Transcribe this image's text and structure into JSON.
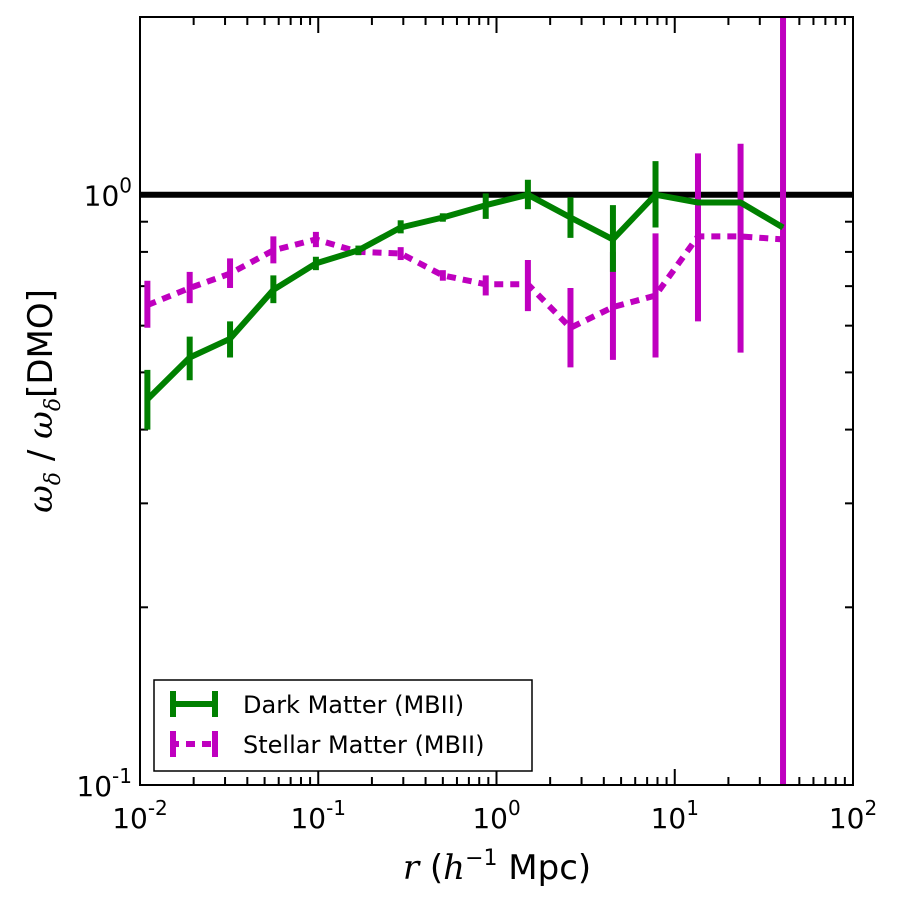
{
  "chart_data": {
    "type": "line",
    "xscale": "log",
    "yscale": "log",
    "xlim": [
      0.01,
      100
    ],
    "ylim": [
      0.1,
      2.0
    ],
    "xlabel": {
      "var": "r",
      "open": " (",
      "base": "h",
      "exp": "−1",
      "unit": " Mpc)"
    },
    "ylabel": {
      "w1": "ω",
      "s1": "δ",
      "sep": " / ",
      "w2": "ω",
      "s2": "δ",
      "suffix": "[DMO]"
    },
    "x_ticks": [
      {
        "value": 0.01,
        "base": "10",
        "exp": "-2"
      },
      {
        "value": 0.1,
        "base": "10",
        "exp": "-1"
      },
      {
        "value": 1,
        "base": "10",
        "exp": "0"
      },
      {
        "value": 10,
        "base": "10",
        "exp": "1"
      },
      {
        "value": 100,
        "base": "10",
        "exp": "2"
      }
    ],
    "y_ticks": [
      {
        "value": 0.1,
        "base": "10",
        "exp": "-1"
      },
      {
        "value": 1,
        "base": "10",
        "exp": "0"
      }
    ],
    "reference_line": {
      "y": 1.0,
      "color": "#000000"
    },
    "series": [
      {
        "name": "Dark Matter (MBII)",
        "color": "#008000",
        "style": "solid",
        "x": [
          0.011,
          0.019,
          0.032,
          0.056,
          0.097,
          0.168,
          0.29,
          0.5,
          0.87,
          1.5,
          2.6,
          4.5,
          7.8,
          13.5,
          23.4,
          40.5
        ],
        "y": [
          0.45,
          0.53,
          0.57,
          0.69,
          0.765,
          0.805,
          0.88,
          0.915,
          0.96,
          1.0,
          0.915,
          0.84,
          1.0,
          0.97,
          0.97,
          0.88
        ],
        "yerr_low": [
          0.4,
          0.485,
          0.53,
          0.655,
          0.745,
          0.79,
          0.86,
          0.9,
          0.91,
          0.945,
          0.845,
          0.74,
          0.88,
          0.97,
          0.97,
          0.88
        ],
        "yerr_high": [
          0.505,
          0.575,
          0.61,
          0.73,
          0.785,
          0.82,
          0.905,
          0.93,
          1.005,
          1.06,
          0.99,
          0.96,
          1.14,
          0.97,
          0.97,
          0.88
        ]
      },
      {
        "name": "Stellar Matter (MBII)",
        "color": "#bf00bf",
        "style": "dotted",
        "x": [
          0.011,
          0.019,
          0.032,
          0.056,
          0.097,
          0.168,
          0.29,
          0.5,
          0.87,
          1.5,
          2.6,
          4.5,
          7.8,
          13.5,
          23.4,
          40.5
        ],
        "y": [
          0.65,
          0.695,
          0.735,
          0.805,
          0.84,
          0.8,
          0.795,
          0.73,
          0.705,
          0.705,
          0.595,
          0.645,
          0.675,
          0.85,
          0.85,
          0.84
        ],
        "yerr_low": [
          0.595,
          0.655,
          0.695,
          0.765,
          0.815,
          0.79,
          0.775,
          0.715,
          0.675,
          0.635,
          0.51,
          0.525,
          0.53,
          0.61,
          0.54,
          0.1
        ],
        "yerr_high": [
          0.715,
          0.74,
          0.78,
          0.85,
          0.865,
          0.81,
          0.815,
          0.745,
          0.73,
          0.775,
          0.695,
          0.8,
          0.86,
          1.175,
          1.22,
          2.0
        ]
      }
    ],
    "legend": {
      "position": "bottom-left"
    }
  }
}
